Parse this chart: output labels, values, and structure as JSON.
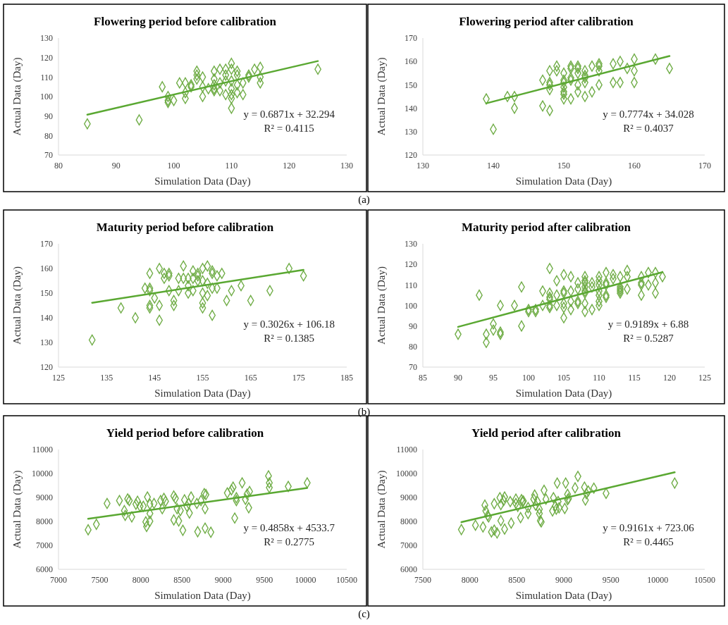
{
  "chart_data": [
    {
      "type": "scatter",
      "title": "Flowering period before calibration",
      "xlabel": "Simulation Data (Day)",
      "ylabel": "Actual Data (Day)",
      "xlim": [
        80,
        130
      ],
      "xticks": [
        80,
        90,
        100,
        110,
        120,
        130
      ],
      "ylim": [
        70,
        130
      ],
      "yticks": [
        70,
        80,
        90,
        100,
        110,
        120,
        130
      ],
      "annotations": [
        "y = 0.6871x + 32.294",
        "R² = 0.4115",
        "(a)"
      ],
      "series": [
        {
          "type": "scatter",
          "color": "#70ad47",
          "marker": "diamond",
          "x": [
            85,
            94,
            98,
            99,
            99,
            99,
            100,
            101,
            102,
            102,
            102,
            103,
            103,
            104,
            104,
            104,
            105,
            105,
            105,
            106,
            107,
            107,
            107,
            107,
            107,
            108,
            108,
            108,
            109,
            109,
            109,
            109,
            110,
            110,
            110,
            110,
            110,
            110,
            110,
            111,
            111,
            111,
            111,
            112,
            112,
            113,
            113,
            114,
            115,
            115,
            115,
            125
          ],
          "values": [
            86,
            88,
            105,
            100,
            98,
            97,
            98,
            107,
            107,
            102,
            99,
            106,
            105,
            113,
            111,
            109,
            110,
            105,
            100,
            104,
            113,
            109,
            106,
            104,
            103,
            114,
            107,
            103,
            114,
            111,
            108,
            101,
            117,
            114,
            108,
            104,
            101,
            99,
            94,
            113,
            111,
            106,
            102,
            107,
            101,
            111,
            110,
            114,
            115,
            110,
            107,
            114
          ]
        },
        {
          "type": "line",
          "color": "#5aa832",
          "marker": "none",
          "line_style": "solid",
          "x": [
            85,
            125
          ],
          "values": [
            90.7,
            118.2
          ]
        }
      ]
    },
    {
      "type": "scatter",
      "title": "Flowering period after calibration",
      "xlabel": "Simulation Data (Day)",
      "ylabel": "Actual Data (Day)",
      "xlim": [
        130,
        170
      ],
      "xticks": [
        130,
        140,
        150,
        160,
        170
      ],
      "ylim": [
        120,
        170
      ],
      "yticks": [
        120,
        130,
        140,
        150,
        160,
        170
      ],
      "annotations": [
        "y = 0.7774x + 34.028",
        "R² = 0.4037"
      ],
      "series": [
        {
          "type": "scatter",
          "color": "#70ad47",
          "marker": "diamond",
          "x": [
            139,
            140,
            142,
            143,
            143,
            147,
            147,
            148,
            148,
            148,
            148,
            148,
            149,
            149,
            150,
            150,
            150,
            150,
            150,
            150,
            150,
            151,
            151,
            151,
            151,
            151,
            152,
            152,
            152,
            152,
            152,
            153,
            153,
            153,
            153,
            153,
            154,
            154,
            155,
            155,
            155,
            155,
            157,
            157,
            158,
            158,
            159,
            160,
            160,
            160,
            163,
            165
          ],
          "values": [
            144,
            131,
            145,
            145,
            140,
            152,
            141,
            156,
            151,
            150,
            148,
            139,
            158,
            156,
            155,
            152,
            151,
            149,
            147,
            146,
            144,
            158,
            157,
            153,
            152,
            144,
            158,
            157,
            155,
            150,
            147,
            156,
            154,
            153,
            151,
            145,
            158,
            147,
            159,
            158,
            156,
            150,
            159,
            151,
            160,
            151,
            157,
            161,
            156,
            151,
            161,
            157
          ]
        },
        {
          "type": "line",
          "color": "#5aa832",
          "marker": "none",
          "line_style": "solid",
          "x": [
            139,
            165
          ],
          "values": [
            142.1,
            162.3
          ]
        }
      ]
    },
    {
      "type": "scatter",
      "title": "Maturity period before calibration",
      "xlabel": "Simulation Data (Day)",
      "ylabel": "Actual Data (Day)",
      "xlim": [
        125,
        185
      ],
      "xticks": [
        125,
        135,
        145,
        155,
        165,
        175,
        185
      ],
      "ylim": [
        120,
        170
      ],
      "yticks": [
        120,
        130,
        140,
        150,
        160,
        170
      ],
      "annotations": [
        "y = 0.3026x + 106.18",
        "R² = 0.1385",
        "(b)"
      ],
      "series": [
        {
          "type": "scatter",
          "color": "#70ad47",
          "marker": "diamond",
          "x": [
            132,
            138,
            141,
            143,
            144,
            144,
            144,
            144,
            144,
            145,
            146,
            146,
            146,
            147,
            147,
            148,
            148,
            148,
            149,
            149,
            150,
            150,
            151,
            151,
            152,
            152,
            152,
            153,
            153,
            153,
            154,
            154,
            154,
            155,
            155,
            155,
            155,
            155,
            156,
            156,
            156,
            157,
            157,
            157,
            157,
            158,
            158,
            159,
            160,
            161,
            163,
            165,
            169,
            173,
            176
          ],
          "values": [
            131,
            144,
            140,
            152,
            158,
            152,
            151,
            145,
            144,
            148,
            160,
            145,
            139,
            158,
            156,
            158,
            157,
            151,
            147,
            145,
            156,
            151,
            161,
            156,
            156,
            153,
            150,
            159,
            156,
            151,
            158,
            157,
            155,
            160,
            155,
            150,
            146,
            144,
            161,
            154,
            149,
            159,
            158,
            152,
            141,
            157,
            152,
            158,
            147,
            151,
            153,
            147,
            151,
            160,
            157
          ]
        },
        {
          "type": "line",
          "color": "#5aa832",
          "marker": "none",
          "line_style": "solid",
          "x": [
            132,
            176
          ],
          "values": [
            146.1,
            159.4
          ]
        }
      ]
    },
    {
      "type": "scatter",
      "title": "Maturity period after calibration",
      "xlabel": "Simulation Data (Day)",
      "ylabel": "Actual Data (Day)",
      "xlim": [
        85,
        125
      ],
      "xticks": [
        85,
        90,
        95,
        100,
        105,
        110,
        115,
        120,
        125
      ],
      "ylim": [
        70,
        130
      ],
      "yticks": [
        70,
        80,
        90,
        100,
        110,
        120,
        130
      ],
      "annotations": [
        "y = 0.9189x + 6.88",
        "R² = 0.5287"
      ],
      "series": [
        {
          "type": "scatter",
          "color": "#70ad47",
          "marker": "diamond",
          "x": [
            90,
            93,
            94,
            94,
            95,
            95,
            96,
            96,
            96,
            98,
            99,
            99,
            100,
            100,
            101,
            101,
            102,
            102,
            103,
            103,
            103,
            103,
            103,
            103,
            104,
            104,
            104,
            105,
            105,
            105,
            105,
            105,
            105,
            106,
            106,
            106,
            106,
            107,
            107,
            107,
            107,
            108,
            108,
            108,
            108,
            108,
            108,
            108,
            108,
            109,
            109,
            109,
            110,
            110,
            110,
            110,
            110,
            110,
            110,
            111,
            111,
            111,
            111,
            111,
            112,
            112,
            113,
            113,
            113,
            113,
            113,
            114,
            114,
            114,
            116,
            116,
            116,
            116,
            117,
            117,
            118,
            118,
            118,
            119
          ],
          "values": [
            86,
            105,
            86,
            82,
            91,
            88,
            100,
            87,
            86,
            100,
            109,
            90,
            98,
            97,
            98,
            97,
            107,
            100,
            118,
            106,
            104,
            103,
            100,
            99,
            112,
            105,
            100,
            115,
            107,
            106,
            101,
            99,
            94,
            114,
            107,
            102,
            98,
            111,
            108,
            102,
            101,
            114,
            112,
            111,
            109,
            107,
            106,
            101,
            97,
            111,
            109,
            98,
            114,
            112,
            110,
            107,
            105,
            102,
            100,
            116,
            111,
            110,
            105,
            104,
            115,
            113,
            114,
            109,
            108,
            107,
            106,
            117,
            114,
            108,
            114,
            111,
            110,
            105,
            116,
            110,
            116,
            111,
            106,
            114
          ]
        },
        {
          "type": "line",
          "color": "#5aa832",
          "marker": "none",
          "line_style": "solid",
          "x": [
            90,
            119
          ],
          "values": [
            89.6,
            116.2
          ]
        }
      ]
    },
    {
      "type": "scatter",
      "title": "Yield period before calibration",
      "xlabel": "Simulation Data (Day)",
      "ylabel": "Actual Data (Day)",
      "xlim": [
        7000,
        10500
      ],
      "xticks": [
        7000,
        7500,
        8000,
        8500,
        9000,
        9500,
        10000,
        10500
      ],
      "ylim": [
        6000,
        11000
      ],
      "yticks": [
        6000,
        7000,
        8000,
        9000,
        10000,
        11000
      ],
      "annotations": [
        "y = 0.4858x + 4533.7",
        "R² = 0.2775",
        "(c)"
      ],
      "series": [
        {
          "type": "scatter",
          "color": "#70ad47",
          "marker": "diamond",
          "x": [
            7360,
            7460,
            7590,
            7740,
            7800,
            7810,
            7840,
            7860,
            7890,
            7940,
            7960,
            7990,
            8030,
            8080,
            8060,
            8070,
            8110,
            8110,
            8110,
            8160,
            8240,
            8260,
            8280,
            8300,
            8400,
            8420,
            8400,
            8460,
            8440,
            8480,
            8510,
            8530,
            8560,
            8580,
            8590,
            8610,
            8690,
            8680,
            8730,
            8770,
            8790,
            8780,
            8780,
            8850,
            9050,
            9100,
            9120,
            9140,
            9160,
            9160,
            9230,
            9270,
            9290,
            9320,
            9310,
            9550,
            9560,
            9560,
            9790,
            10020
          ],
          "values": [
            7650,
            7880,
            8750,
            8870,
            8450,
            8250,
            8940,
            8870,
            8190,
            8720,
            8840,
            8630,
            8630,
            9020,
            7980,
            7790,
            8720,
            8330,
            8010,
            8750,
            8870,
            8530,
            8960,
            8840,
            9060,
            8960,
            8060,
            8020,
            8530,
            8450,
            7630,
            8900,
            8630,
            8750,
            8350,
            9020,
            7570,
            8750,
            8870,
            9160,
            9120,
            8530,
            7720,
            7550,
            9190,
            9320,
            9430,
            8140,
            8990,
            8870,
            9610,
            8920,
            9140,
            9250,
            8570,
            9900,
            9610,
            9410,
            9460,
            9610
          ]
        },
        {
          "type": "line",
          "color": "#5aa832",
          "marker": "none",
          "line_style": "solid",
          "x": [
            7360,
            10020
          ],
          "values": [
            8110,
            9400
          ]
        }
      ]
    },
    {
      "type": "scatter",
      "title": "Yield period after calibration",
      "xlabel": "Simulation Data (Day)",
      "ylabel": "Actual Data (Day)",
      "xlim": [
        7500,
        10500
      ],
      "xticks": [
        7500,
        8000,
        8500,
        9000,
        9500,
        10000,
        10500
      ],
      "ylim": [
        6000,
        11000
      ],
      "yticks": [
        6000,
        7000,
        8000,
        9000,
        10000,
        11000
      ],
      "annotations": [
        "y = 0.9161x + 723.06",
        "R² = 0.4465"
      ],
      "series": [
        {
          "type": "scatter",
          "color": "#70ad47",
          "marker": "diamond",
          "x": [
            7910,
            8060,
            8140,
            8160,
            8170,
            8190,
            8200,
            8230,
            8260,
            8290,
            8260,
            8320,
            8330,
            8330,
            8370,
            8360,
            8370,
            8430,
            8440,
            8490,
            8490,
            8510,
            8550,
            8560,
            8570,
            8540,
            8620,
            8620,
            8680,
            8690,
            8700,
            8720,
            8740,
            8740,
            8750,
            8760,
            8790,
            8810,
            8880,
            8890,
            8910,
            8920,
            8930,
            8940,
            8950,
            9010,
            9020,
            9040,
            9050,
            9040,
            9120,
            9150,
            9220,
            9230,
            9240,
            9260,
            9320,
            9450,
            10180
          ],
          "values": [
            7660,
            7840,
            7770,
            8680,
            8440,
            8240,
            8190,
            7560,
            7640,
            7520,
            8740,
            8990,
            8700,
            8030,
            9020,
            8870,
            7680,
            8830,
            7930,
            8930,
            8750,
            8630,
            8910,
            8830,
            8850,
            8160,
            8580,
            8330,
            8930,
            9100,
            8680,
            8830,
            8510,
            8330,
            8030,
            7980,
            9300,
            8930,
            8440,
            8990,
            8640,
            8510,
            9600,
            8830,
            8570,
            8540,
            9600,
            9130,
            8950,
            8910,
            9400,
            9880,
            9430,
            8890,
            9160,
            9270,
            9390,
            9170,
            9600
          ]
        },
        {
          "type": "line",
          "color": "#5aa832",
          "marker": "none",
          "line_style": "solid",
          "x": [
            7910,
            10180
          ],
          "values": [
            7970,
            10050
          ]
        }
      ]
    }
  ]
}
